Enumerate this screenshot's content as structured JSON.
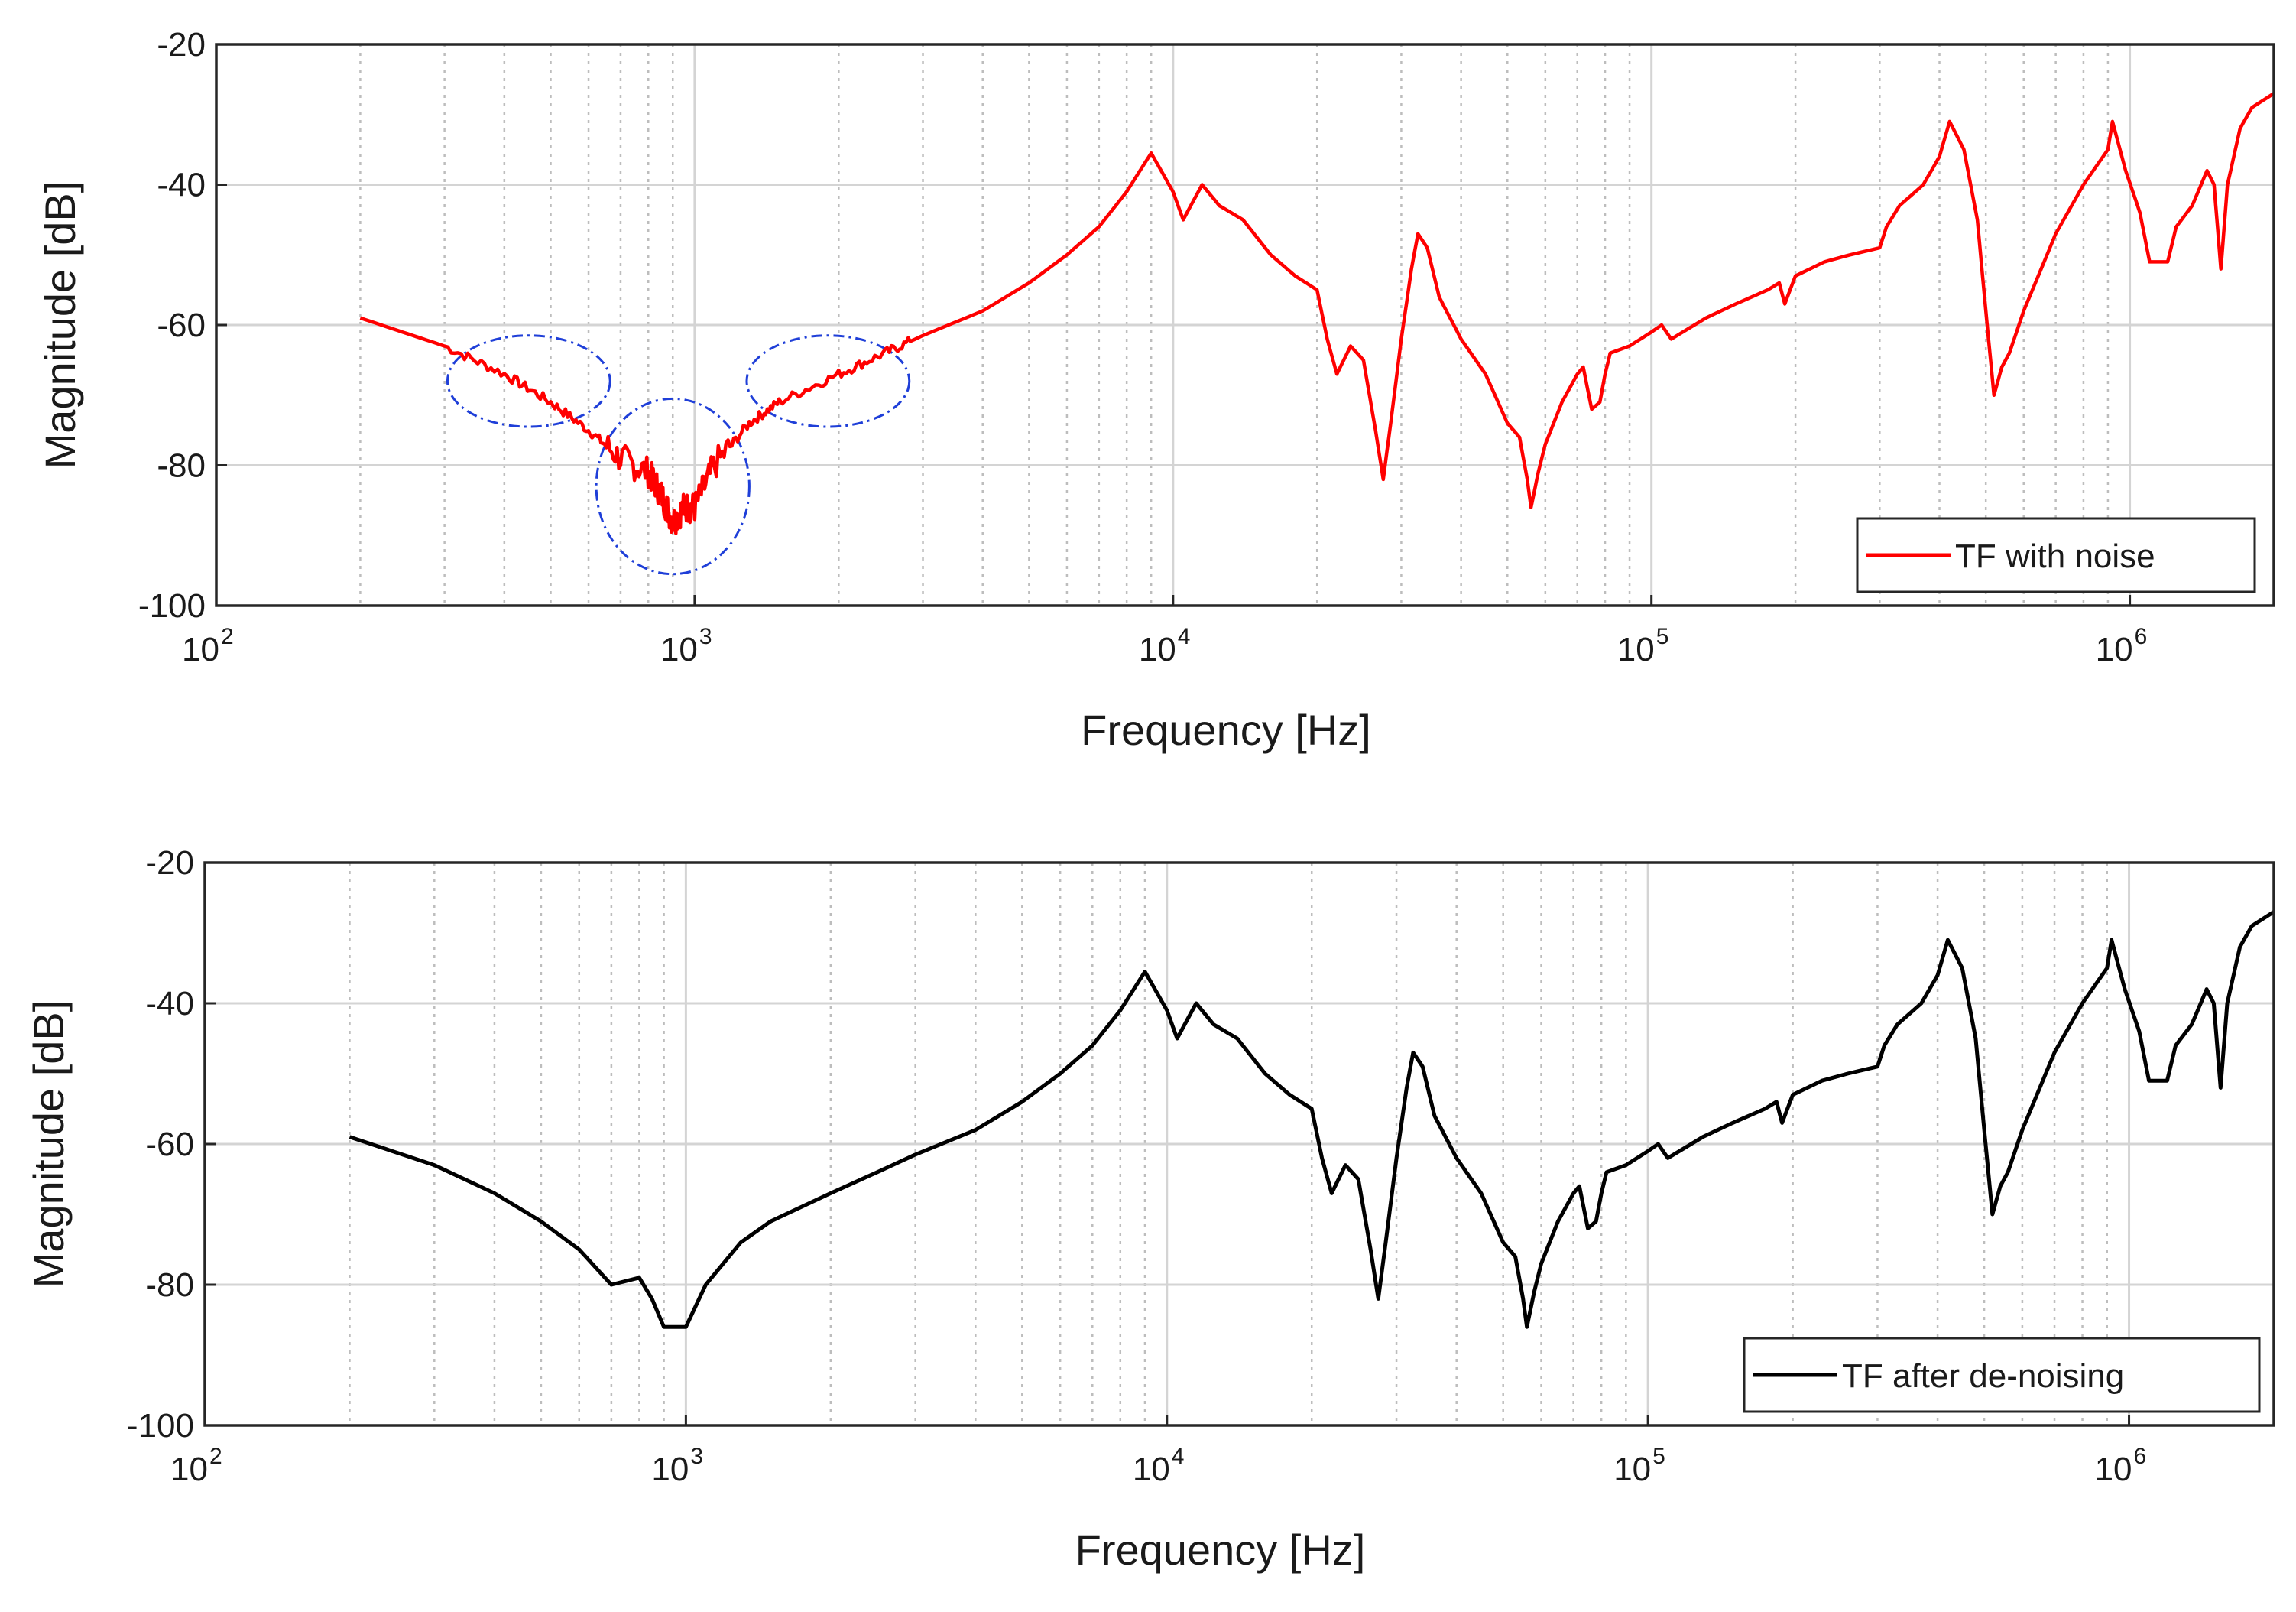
{
  "chart_data": [
    {
      "type": "line",
      "title": "",
      "xlabel": "Frequency [Hz]",
      "ylabel": "Magnitude [dB]",
      "x_scale": "log",
      "xlim": [
        100,
        2000000
      ],
      "ylim": [
        -100,
        -20
      ],
      "x_ticks": [
        {
          "base": "10",
          "exp": "2"
        },
        {
          "base": "10",
          "exp": "3"
        },
        {
          "base": "10",
          "exp": "4"
        },
        {
          "base": "10",
          "exp": "5"
        },
        {
          "base": "10",
          "exp": "6"
        }
      ],
      "y_ticks": [
        "-20",
        "-40",
        "-60",
        "-80",
        "-100"
      ],
      "grid": true,
      "legend_position": "bottom-right",
      "annotations": [
        {
          "shape": "ellipse",
          "style": "dash-dot",
          "color": "#1f3fd8",
          "center": [
            450,
            -68
          ],
          "note_x_span_decades": 0.34,
          "note_y_span_db": 13
        },
        {
          "shape": "ellipse",
          "style": "dash-dot",
          "color": "#1f3fd8",
          "center": [
            900,
            -83
          ],
          "note_x_span_decades": 0.32,
          "note_y_span_db": 25
        },
        {
          "shape": "ellipse",
          "style": "dash-dot",
          "color": "#1f3fd8",
          "center": [
            1900,
            -68
          ],
          "note_x_span_decades": 0.34,
          "note_y_span_db": 13
        }
      ],
      "series": [
        {
          "name": "TF with noise",
          "color": "#ff0000",
          "noisy": true,
          "points": [
            [
              200,
              -59
            ],
            [
              300,
              -63
            ],
            [
              400,
              -67
            ],
            [
              500,
              -71
            ],
            [
              600,
              -75
            ],
            [
              700,
              -79
            ],
            [
              800,
              -81
            ],
            [
              850,
              -84
            ],
            [
              900,
              -88
            ],
            [
              950,
              -86
            ],
            [
              1000,
              -86
            ],
            [
              1100,
              -80
            ],
            [
              1300,
              -74
            ],
            [
              1500,
              -71
            ],
            [
              2000,
              -67
            ],
            [
              2500,
              -64
            ],
            [
              3000,
              -61.5
            ],
            [
              4000,
              -58
            ],
            [
              5000,
              -54
            ],
            [
              6000,
              -50
            ],
            [
              7000,
              -46
            ],
            [
              8000,
              -41
            ],
            [
              9000,
              -35.5
            ],
            [
              10000,
              -41
            ],
            [
              10500,
              -45
            ],
            [
              11500,
              -40
            ],
            [
              12500,
              -43
            ],
            [
              14000,
              -45
            ],
            [
              16000,
              -50
            ],
            [
              18000,
              -53
            ],
            [
              20000,
              -55
            ],
            [
              21000,
              -62
            ],
            [
              22000,
              -67
            ],
            [
              23500,
              -63
            ],
            [
              25000,
              -65
            ],
            [
              26500,
              -75
            ],
            [
              27500,
              -82
            ],
            [
              28500,
              -74
            ],
            [
              30000,
              -62
            ],
            [
              31500,
              -52
            ],
            [
              32500,
              -47
            ],
            [
              34000,
              -49
            ],
            [
              36000,
              -56
            ],
            [
              40000,
              -62
            ],
            [
              45000,
              -67
            ],
            [
              50000,
              -74
            ],
            [
              53000,
              -76
            ],
            [
              55000,
              -82
            ],
            [
              56000,
              -86
            ],
            [
              58000,
              -81
            ],
            [
              60000,
              -77
            ],
            [
              65000,
              -71
            ],
            [
              70000,
              -67
            ],
            [
              72000,
              -66
            ],
            [
              75000,
              -72
            ],
            [
              78000,
              -71
            ],
            [
              80000,
              -67
            ],
            [
              82000,
              -64
            ],
            [
              90000,
              -63
            ],
            [
              100000,
              -61
            ],
            [
              105000,
              -60
            ],
            [
              110000,
              -62
            ],
            [
              130000,
              -59
            ],
            [
              150000,
              -57
            ],
            [
              175000,
              -55
            ],
            [
              185000,
              -54
            ],
            [
              190000,
              -57
            ],
            [
              200000,
              -53
            ],
            [
              230000,
              -51
            ],
            [
              260000,
              -50
            ],
            [
              300000,
              -49
            ],
            [
              310000,
              -46
            ],
            [
              330000,
              -43
            ],
            [
              370000,
              -40
            ],
            [
              400000,
              -36
            ],
            [
              420000,
              -31
            ],
            [
              450000,
              -35
            ],
            [
              480000,
              -45
            ],
            [
              500000,
              -58
            ],
            [
              520000,
              -70
            ],
            [
              540000,
              -66
            ],
            [
              560000,
              -64
            ],
            [
              600000,
              -58
            ],
            [
              700000,
              -47
            ],
            [
              800000,
              -40
            ],
            [
              900000,
              -35
            ],
            [
              920000,
              -31
            ],
            [
              980000,
              -38
            ],
            [
              1050000,
              -44
            ],
            [
              1100000,
              -51
            ],
            [
              1200000,
              -51
            ],
            [
              1250000,
              -46
            ],
            [
              1350000,
              -43
            ],
            [
              1450000,
              -38
            ],
            [
              1500000,
              -40
            ],
            [
              1550000,
              -52
            ],
            [
              1600000,
              -40
            ],
            [
              1700000,
              -32
            ],
            [
              1800000,
              -29
            ],
            [
              2000000,
              -27
            ]
          ]
        }
      ]
    },
    {
      "type": "line",
      "title": "",
      "xlabel": "Frequency [Hz]",
      "ylabel": "Magnitude [dB]",
      "x_scale": "log",
      "xlim": [
        100,
        2000000
      ],
      "ylim": [
        -100,
        -20
      ],
      "x_ticks": [
        {
          "base": "10",
          "exp": "2"
        },
        {
          "base": "10",
          "exp": "3"
        },
        {
          "base": "10",
          "exp": "4"
        },
        {
          "base": "10",
          "exp": "5"
        },
        {
          "base": "10",
          "exp": "6"
        }
      ],
      "y_ticks": [
        "-20",
        "-40",
        "-60",
        "-80",
        "-100"
      ],
      "grid": true,
      "legend_position": "bottom-right",
      "annotations": [],
      "series": [
        {
          "name": "TF after de-noising",
          "color": "#000000",
          "noisy": false,
          "points": [
            [
              200,
              -59
            ],
            [
              300,
              -63
            ],
            [
              400,
              -67
            ],
            [
              500,
              -71
            ],
            [
              600,
              -75
            ],
            [
              700,
              -80
            ],
            [
              800,
              -79
            ],
            [
              850,
              -82
            ],
            [
              900,
              -86
            ],
            [
              950,
              -86
            ],
            [
              1000,
              -86
            ],
            [
              1100,
              -80
            ],
            [
              1300,
              -74
            ],
            [
              1500,
              -71
            ],
            [
              2000,
              -67
            ],
            [
              2500,
              -64
            ],
            [
              3000,
              -61.5
            ],
            [
              4000,
              -58
            ],
            [
              5000,
              -54
            ],
            [
              6000,
              -50
            ],
            [
              7000,
              -46
            ],
            [
              8000,
              -41
            ],
            [
              9000,
              -35.5
            ],
            [
              10000,
              -41
            ],
            [
              10500,
              -45
            ],
            [
              11500,
              -40
            ],
            [
              12500,
              -43
            ],
            [
              14000,
              -45
            ],
            [
              16000,
              -50
            ],
            [
              18000,
              -53
            ],
            [
              20000,
              -55
            ],
            [
              21000,
              -62
            ],
            [
              22000,
              -67
            ],
            [
              23500,
              -63
            ],
            [
              25000,
              -65
            ],
            [
              26500,
              -75
            ],
            [
              27500,
              -82
            ],
            [
              28500,
              -74
            ],
            [
              30000,
              -62
            ],
            [
              31500,
              -52
            ],
            [
              32500,
              -47
            ],
            [
              34000,
              -49
            ],
            [
              36000,
              -56
            ],
            [
              40000,
              -62
            ],
            [
              45000,
              -67
            ],
            [
              50000,
              -74
            ],
            [
              53000,
              -76
            ],
            [
              55000,
              -82
            ],
            [
              56000,
              -86
            ],
            [
              58000,
              -81
            ],
            [
              60000,
              -77
            ],
            [
              65000,
              -71
            ],
            [
              70000,
              -67
            ],
            [
              72000,
              -66
            ],
            [
              75000,
              -72
            ],
            [
              78000,
              -71
            ],
            [
              80000,
              -67
            ],
            [
              82000,
              -64
            ],
            [
              90000,
              -63
            ],
            [
              100000,
              -61
            ],
            [
              105000,
              -60
            ],
            [
              110000,
              -62
            ],
            [
              130000,
              -59
            ],
            [
              150000,
              -57
            ],
            [
              175000,
              -55
            ],
            [
              185000,
              -54
            ],
            [
              190000,
              -57
            ],
            [
              200000,
              -53
            ],
            [
              230000,
              -51
            ],
            [
              260000,
              -50
            ],
            [
              300000,
              -49
            ],
            [
              310000,
              -46
            ],
            [
              330000,
              -43
            ],
            [
              370000,
              -40
            ],
            [
              400000,
              -36
            ],
            [
              420000,
              -31
            ],
            [
              450000,
              -35
            ],
            [
              480000,
              -45
            ],
            [
              500000,
              -58
            ],
            [
              520000,
              -70
            ],
            [
              540000,
              -66
            ],
            [
              560000,
              -64
            ],
            [
              600000,
              -58
            ],
            [
              700000,
              -47
            ],
            [
              800000,
              -40
            ],
            [
              900000,
              -35
            ],
            [
              920000,
              -31
            ],
            [
              980000,
              -38
            ],
            [
              1050000,
              -44
            ],
            [
              1100000,
              -51
            ],
            [
              1200000,
              -51
            ],
            [
              1250000,
              -46
            ],
            [
              1350000,
              -43
            ],
            [
              1450000,
              -38
            ],
            [
              1500000,
              -40
            ],
            [
              1550000,
              -52
            ],
            [
              1600000,
              -40
            ],
            [
              1700000,
              -32
            ],
            [
              1800000,
              -29
            ],
            [
              2000000,
              -27
            ]
          ]
        }
      ]
    }
  ]
}
